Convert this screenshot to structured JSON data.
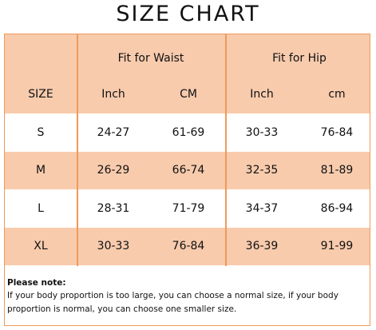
{
  "header": {
    "title": "SIZE CHART"
  },
  "table": {
    "group_headers": [
      "Fit for Waist",
      "Fit for Hip"
    ],
    "columns": [
      "SIZE",
      "Inch",
      "CM",
      "Inch",
      "cm"
    ],
    "rows": [
      [
        "S",
        "24-27",
        "61-69",
        "30-33",
        "76-84"
      ],
      [
        "M",
        "26-29",
        "66-74",
        "32-35",
        "81-89"
      ],
      [
        "L",
        "28-31",
        "71-79",
        "34-37",
        "86-94"
      ],
      [
        "XL",
        "30-33",
        "76-84",
        "36-39",
        "91-99"
      ]
    ]
  },
  "note": {
    "label": "Please note:",
    "lines": [
      "If your body proportion is too large, you can choose a normal size, if your body",
      "proportion is normal, you can choose one smaller size."
    ]
  }
}
